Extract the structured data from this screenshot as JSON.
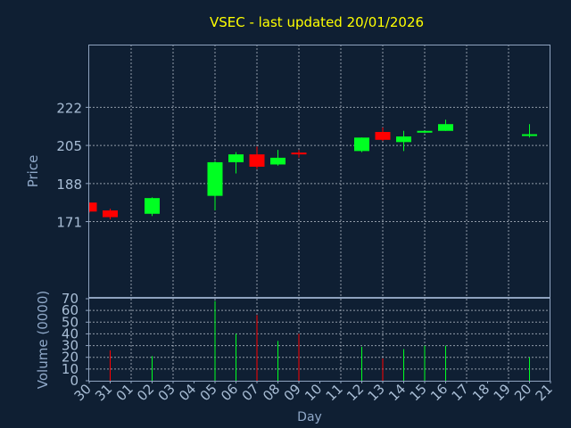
{
  "chart_data": {
    "type": "candlestick",
    "title": "VSEC - last updated 20/01/2026",
    "xlabel": "Day",
    "price_panel": {
      "ylabel": "Price",
      "ylim": [
        137,
        250
      ],
      "yticks": [
        171,
        188,
        205,
        222
      ]
    },
    "volume_panel": {
      "ylabel": "Volume (0000)",
      "ylim": [
        0,
        70
      ],
      "yticks": [
        0,
        10,
        20,
        30,
        40,
        50,
        60,
        70
      ]
    },
    "categories": [
      "30",
      "31",
      "01",
      "02",
      "03",
      "04",
      "05",
      "06",
      "07",
      "08",
      "09",
      "10",
      "11",
      "12",
      "13",
      "14",
      "15",
      "16",
      "17",
      "18",
      "19",
      "20",
      "21"
    ],
    "grid": true,
    "colors": {
      "background": "#0f1f33",
      "axis": "#8fa3bf",
      "grid": "#c8d0da",
      "title": "#ffff00",
      "up": "#00ff22",
      "down": "#ff0000",
      "label": "#8fa8c8",
      "tick_label": "#a9bed6"
    },
    "candles": [
      {
        "day": "30",
        "open": 179.5,
        "high": 179.5,
        "low": 175.0,
        "close": 175.5,
        "volume": 0
      },
      {
        "day": "31",
        "open": 176.0,
        "high": 176.8,
        "low": 172.0,
        "close": 173.0,
        "volume": 26
      },
      {
        "day": "02",
        "open": 174.5,
        "high": 181.8,
        "low": 173.5,
        "close": 181.5,
        "volume": 21
      },
      {
        "day": "05",
        "open": 182.5,
        "high": 198.0,
        "low": 176.0,
        "close": 197.5,
        "volume": 68
      },
      {
        "day": "06",
        "open": 197.5,
        "high": 202.0,
        "low": 192.5,
        "close": 201.0,
        "volume": 40
      },
      {
        "day": "07",
        "open": 201.0,
        "high": 204.5,
        "low": 194.5,
        "close": 195.5,
        "volume": 56
      },
      {
        "day": "08",
        "open": 196.5,
        "high": 203.0,
        "low": 196.0,
        "close": 199.5,
        "volume": 34
      },
      {
        "day": "09",
        "open": 201.8,
        "high": 203.0,
        "low": 199.5,
        "close": 201.0,
        "volume": 40
      },
      {
        "day": "12",
        "open": 202.5,
        "high": 208.5,
        "low": 202.0,
        "close": 208.5,
        "volume": 29
      },
      {
        "day": "13",
        "open": 211.0,
        "high": 213.0,
        "low": 207.0,
        "close": 207.5,
        "volume": 19
      },
      {
        "day": "14",
        "open": 206.5,
        "high": 211.5,
        "low": 202.5,
        "close": 209.0,
        "volume": 27
      },
      {
        "day": "15",
        "open": 211.0,
        "high": 211.5,
        "low": 210.5,
        "close": 211.5,
        "volume": 30
      },
      {
        "day": "16",
        "open": 211.5,
        "high": 216.5,
        "low": 211.5,
        "close": 214.5,
        "volume": 30
      },
      {
        "day": "20",
        "open": 209.5,
        "high": 214.5,
        "low": 208.5,
        "close": 210.0,
        "volume": 20
      }
    ]
  }
}
